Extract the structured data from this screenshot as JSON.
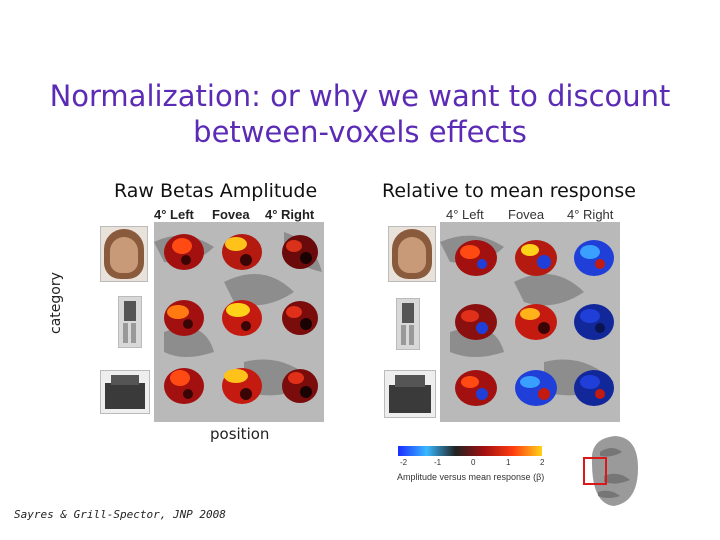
{
  "title": "Normalization: or why we want to discount between-voxels effects",
  "left_panel": {
    "heading": "Raw Betas Amplitude",
    "columns": [
      "4° Left",
      "Fovea",
      "4° Right"
    ]
  },
  "right_panel": {
    "heading": "Relative to mean response",
    "columns": [
      "4° Left",
      "Fovea",
      "4° Right"
    ],
    "colorbar": {
      "ticks": [
        "-2",
        "-1",
        "0",
        "1",
        "2"
      ],
      "label": "Amplitude versus mean response (β)"
    }
  },
  "axis_labels": {
    "y": "category",
    "x": "position"
  },
  "citation": "Sayres & Grill-Spector, JNP 2008",
  "colors": {
    "title": "#5b2bb5",
    "hot": "#e0301a",
    "cold": "#1f3fd8",
    "cortex": "#9a9a9a"
  }
}
